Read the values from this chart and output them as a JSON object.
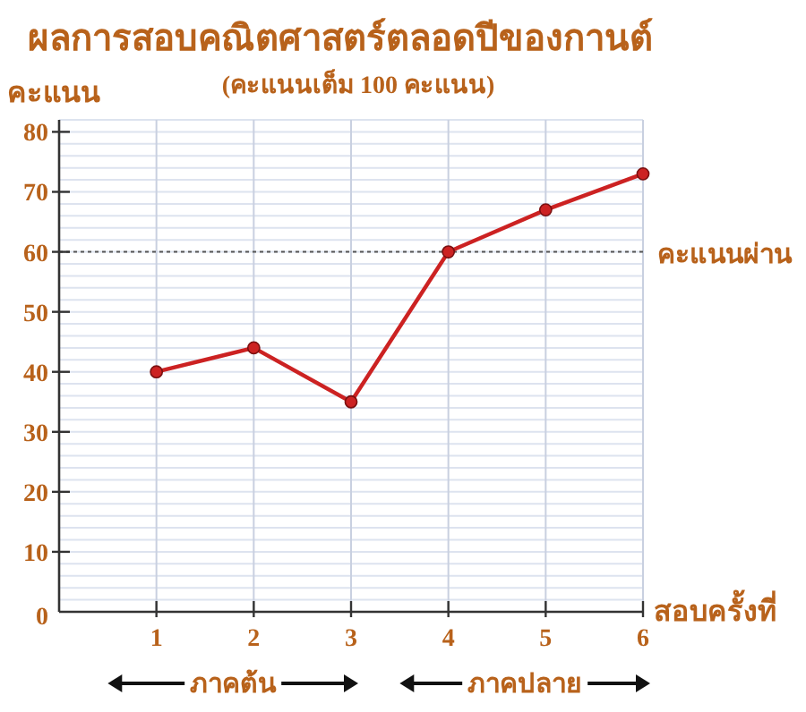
{
  "chart_data": {
    "type": "line",
    "title": "ผลการสอบคณิตศาสตร์ตลอดปีของกานต์",
    "subtitle": "(คะแนนเต็ม 100 คะแนน)",
    "ylabel": "คะแนน",
    "xlabel": "สอบครั้งที่",
    "x": [
      1,
      2,
      3,
      4,
      5,
      6
    ],
    "series": [
      {
        "color": "#cc2222",
        "values": [
          40,
          44,
          35,
          60,
          67,
          73
        ]
      }
    ],
    "xlim": [
      0,
      6
    ],
    "xticks": [
      1,
      2,
      3,
      4,
      5,
      6
    ],
    "ylim": [
      0,
      82
    ],
    "yticks": [
      0,
      10,
      20,
      30,
      40,
      50,
      60,
      70,
      80
    ],
    "grid": true,
    "marker": "circle",
    "line_style": "solid",
    "ref_lines": [
      {
        "axis": "y",
        "value": 60,
        "label": "คะแนนผ่าน",
        "color": "#555555",
        "line_style": "dotted"
      }
    ],
    "annotations": [
      "ภาคต้น",
      "ภาคปลาย"
    ]
  }
}
